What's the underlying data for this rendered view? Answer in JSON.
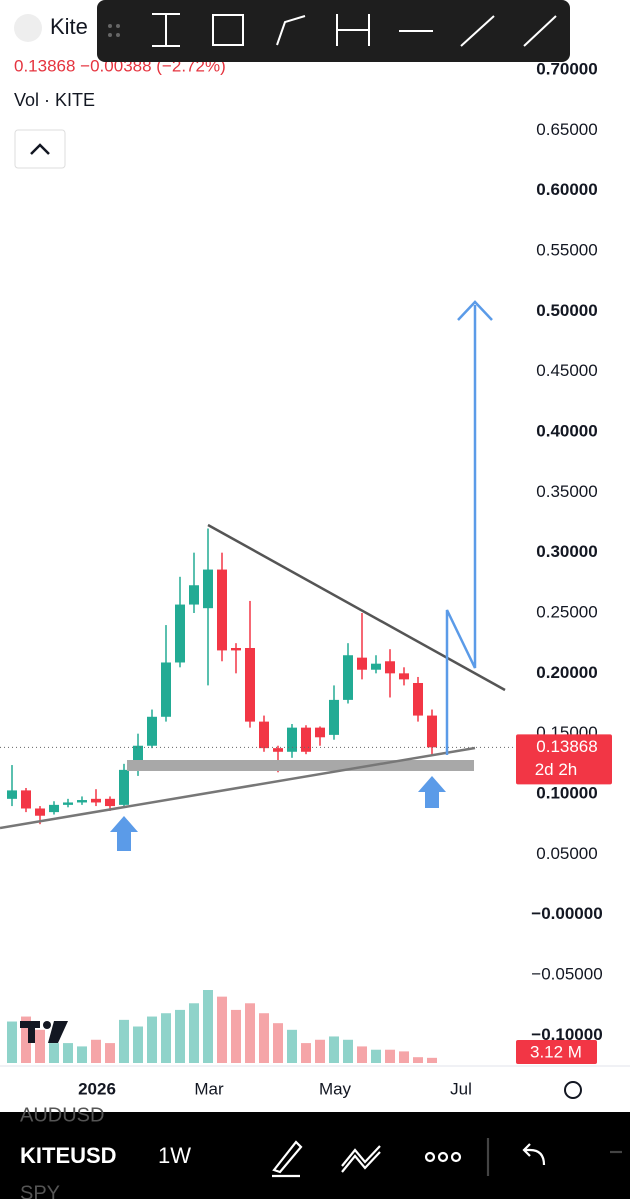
{
  "header": {
    "symbol": "Kite",
    "quote": "0.13868 −0.00388 (−2.72%)",
    "volume_label": "Vol · KITE"
  },
  "chart_data": {
    "type": "candlestick",
    "open": [
      0.096,
      0.103,
      0.088,
      0.085,
      0.091,
      0.093,
      0.096,
      0.096,
      0.091,
      0.12,
      0.14,
      0.164,
      0.209,
      0.257,
      0.254,
      0.286,
      0.221,
      0.221,
      0.16,
      0.138,
      0.135,
      0.155,
      0.155,
      0.149,
      0.178,
      0.213,
      0.203,
      0.21,
      0.2,
      0.192,
      0.165
    ],
    "high": [
      0.124,
      0.105,
      0.09,
      0.094,
      0.096,
      0.098,
      0.104,
      0.098,
      0.125,
      0.15,
      0.17,
      0.24,
      0.28,
      0.3,
      0.32,
      0.3,
      0.225,
      0.26,
      0.165,
      0.14,
      0.158,
      0.157,
      0.156,
      0.19,
      0.225,
      0.25,
      0.215,
      0.22,
      0.205,
      0.197,
      0.17
    ],
    "low": [
      0.09,
      0.085,
      0.075,
      0.083,
      0.089,
      0.091,
      0.09,
      0.086,
      0.09,
      0.115,
      0.138,
      0.16,
      0.205,
      0.25,
      0.19,
      0.21,
      0.2,
      0.155,
      0.135,
      0.118,
      0.13,
      0.133,
      0.14,
      0.145,
      0.175,
      0.195,
      0.2,
      0.18,
      0.19,
      0.16,
      0.132
    ],
    "close": [
      0.103,
      0.088,
      0.082,
      0.091,
      0.093,
      0.095,
      0.093,
      0.09,
      0.12,
      0.14,
      0.164,
      0.209,
      0.257,
      0.273,
      0.286,
      0.219,
      0.219,
      0.16,
      0.138,
      0.135,
      0.155,
      0.135,
      0.147,
      0.178,
      0.215,
      0.203,
      0.208,
      0.2,
      0.195,
      0.165,
      0.13868
    ],
    "volume": [
      25,
      28,
      20,
      12,
      12,
      10,
      14,
      12,
      26,
      22,
      28,
      30,
      32,
      36,
      44,
      40,
      32,
      36,
      30,
      24,
      20,
      12,
      14,
      16,
      14,
      10,
      8,
      8,
      7,
      3.5,
      3.12
    ],
    "ylim": [
      -0.1254,
      0.758
    ],
    "yticks": [
      {
        "value": 0.7,
        "label": "0.70000"
      },
      {
        "value": 0.65,
        "label": "0.65000"
      },
      {
        "value": 0.6,
        "label": "0.60000"
      },
      {
        "value": 0.55,
        "label": "0.55000"
      },
      {
        "value": 0.5,
        "label": "0.50000"
      },
      {
        "value": 0.45,
        "label": "0.45000"
      },
      {
        "value": 0.4,
        "label": "0.40000"
      },
      {
        "value": 0.35,
        "label": "0.35000"
      },
      {
        "value": 0.3,
        "label": "0.30000"
      },
      {
        "value": 0.25,
        "label": "0.25000"
      },
      {
        "value": 0.2,
        "label": "0.20000"
      },
      {
        "value": 0.15,
        "label": "0.15000"
      },
      {
        "value": 0.1,
        "label": "0.10000"
      },
      {
        "value": 0.05,
        "label": "0.05000"
      },
      {
        "value": 0,
        "label": "−0.00000"
      },
      {
        "value": -0.05,
        "label": "−0.05000"
      },
      {
        "value": -0.1,
        "label": "−0.10000"
      }
    ],
    "x_labels": [
      "2026",
      "Mar",
      "May",
      "Jul"
    ],
    "last_price_label": "0.13868",
    "countdown": "2d 2h",
    "last_volume_label": "3.12 M",
    "up_color": "#22ab94",
    "down_color": "#f23645",
    "up_volume_color": "#8fd3ca",
    "down_volume_color": "#f5a5a8"
  },
  "bottom_bar": {
    "symbols": [
      "AUDUSD",
      "KITEUSD",
      "SPY"
    ],
    "interval": "1W"
  }
}
